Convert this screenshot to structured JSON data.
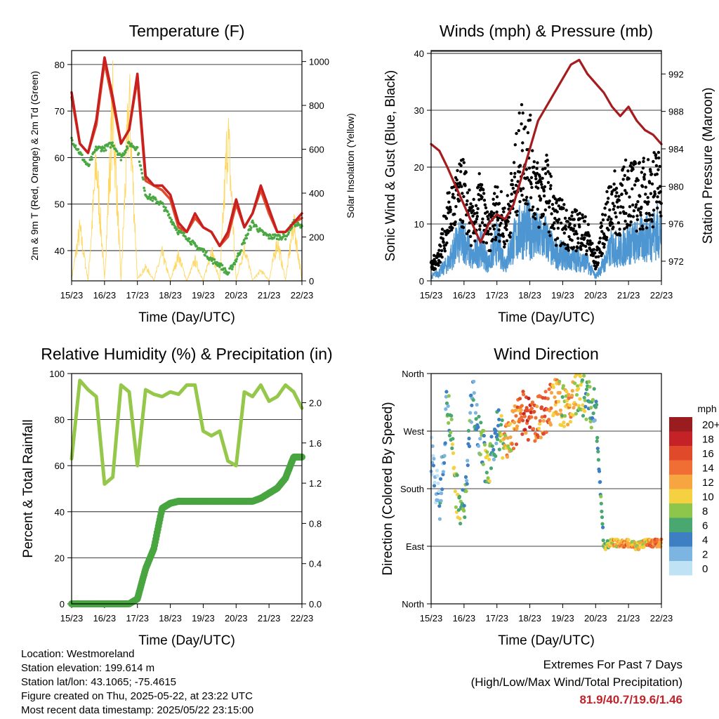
{
  "time_ticks": [
    "15/23",
    "16/23",
    "17/23",
    "18/23",
    "19/23",
    "20/23",
    "21/23",
    "22/23"
  ],
  "colors": {
    "t2m": "#e04a2a",
    "t9m": "#c8201f",
    "td": "#4aa843",
    "solar": "#ffd760",
    "gust": "#000000",
    "wind": "#4d96d2",
    "pressure": "#a51c1f",
    "rh": "#95c84a",
    "precip": "#48a540",
    "extremes": "#c0222a"
  },
  "chart_data": [
    {
      "id": "temperature",
      "type": "line",
      "title": "Temperature (F)",
      "xlabel": "Time (Day/UTC)",
      "ylabel": "2m & 9m T (Red, Orange) & 2m Td (Green)",
      "ylabel_right": "Solar Insolation (Yellow)",
      "ylim": [
        33.5,
        83
      ],
      "ylim_right": [
        0,
        1050
      ],
      "yticks": [
        40,
        50,
        60,
        70,
        80
      ],
      "yticks_right": [
        0,
        200,
        400,
        600,
        800,
        1000
      ],
      "x": [
        0,
        0.25,
        0.5,
        0.75,
        1,
        1.25,
        1.5,
        1.75,
        2,
        2.25,
        2.5,
        2.75,
        3,
        3.25,
        3.5,
        3.75,
        4,
        4.25,
        4.5,
        4.75,
        5,
        5.25,
        5.5,
        5.75,
        6,
        6.25,
        6.5,
        6.75,
        7
      ],
      "series": [
        {
          "name": "9m T",
          "values": [
            74,
            63,
            61,
            68,
            81.5,
            73,
            63,
            66,
            78,
            56,
            54,
            54,
            52,
            46,
            44,
            48,
            45,
            44,
            41,
            44,
            51,
            45,
            48,
            54,
            49,
            44,
            44,
            46,
            48
          ]
        },
        {
          "name": "2m T",
          "values": [
            73,
            63,
            61,
            67,
            80.5,
            72,
            63,
            66,
            77,
            55,
            54,
            53,
            51,
            45,
            44,
            47,
            45,
            44,
            41,
            43,
            50,
            45,
            48,
            53,
            48,
            44,
            44,
            46,
            47
          ]
        },
        {
          "name": "2m Td",
          "values": [
            64,
            61,
            58,
            62,
            62,
            63,
            60,
            63,
            62,
            52,
            51,
            50,
            47,
            44,
            43,
            41,
            40,
            38,
            37,
            35,
            38,
            42,
            46,
            44,
            43,
            43,
            43,
            46,
            45
          ]
        },
        {
          "name": "Solar",
          "values": [
            10,
            300,
            5,
            690,
            10,
            1020,
            5,
            1050,
            10,
            80,
            5,
            160,
            5,
            150,
            0,
            120,
            0,
            180,
            0,
            880,
            5,
            200,
            5,
            60,
            5,
            230,
            5,
            340,
            0
          ]
        }
      ]
    },
    {
      "id": "winds",
      "type": "line",
      "title": "Winds (mph) & Pressure (mb)",
      "xlabel": "Time (Day/UTC)",
      "ylabel": "Sonic Wind & Gust (Blue, Black)",
      "ylabel_right": "Station Pressure (Maroon)",
      "ylim": [
        0,
        40.5
      ],
      "ylim_right": [
        969.9,
        994.5
      ],
      "yticks": [
        0,
        10,
        20,
        30,
        40
      ],
      "yticks_right": [
        972,
        976,
        980,
        984,
        988,
        992
      ],
      "x": [
        0,
        0.25,
        0.5,
        0.75,
        1,
        1.25,
        1.5,
        1.75,
        2,
        2.25,
        2.5,
        2.75,
        3,
        3.25,
        3.5,
        3.75,
        4,
        4.25,
        4.5,
        4.75,
        5,
        5.25,
        5.5,
        5.75,
        6,
        6.25,
        6.5,
        6.75,
        7
      ],
      "series": [
        {
          "name": "Gust",
          "values": [
            3,
            6,
            14,
            18,
            20,
            12,
            18,
            10,
            17,
            12,
            20,
            30,
            27,
            19,
            21,
            14,
            13,
            11,
            12,
            10,
            4,
            12,
            18,
            17,
            21,
            19,
            20,
            21,
            22
          ]
        },
        {
          "name": "Wind",
          "values": [
            1,
            2,
            4,
            8,
            10,
            5,
            8,
            4,
            9,
            4,
            9,
            12,
            12,
            10,
            10,
            6,
            6,
            5,
            5,
            4,
            1,
            4,
            8,
            7,
            9,
            9,
            10,
            11,
            12
          ]
        },
        {
          "name": "Pressure",
          "values": [
            984.5,
            983.8,
            982,
            980,
            978,
            976,
            974,
            976,
            977,
            976.5,
            978,
            981,
            984,
            987,
            988.5,
            990,
            991.5,
            993,
            993.5,
            992,
            991,
            990,
            988.5,
            987.5,
            988.5,
            987,
            986,
            985.5,
            984.5
          ]
        }
      ]
    },
    {
      "id": "humidity_precip",
      "type": "line",
      "title": "Relative Humidity (%) & Precipitation (in)",
      "xlabel": "Time (Day/UTC)",
      "ylabel": "Percent & Total Rainfall",
      "ylim": [
        0,
        100
      ],
      "ylim_right": [
        0,
        2.29
      ],
      "yticks": [
        0,
        20,
        40,
        60,
        80,
        100
      ],
      "yticks_right": [
        0.0,
        0.4,
        0.8,
        1.2,
        1.6,
        2.0
      ],
      "x": [
        0,
        0.25,
        0.5,
        0.75,
        1,
        1.25,
        1.5,
        1.75,
        2,
        2.25,
        2.5,
        2.75,
        3,
        3.25,
        3.5,
        3.75,
        4,
        4.25,
        4.5,
        4.75,
        5,
        5.25,
        5.5,
        5.75,
        6,
        6.25,
        6.5,
        6.75,
        7
      ],
      "series": [
        {
          "name": "RH",
          "values": [
            63,
            97,
            93,
            90,
            52,
            55,
            95,
            92,
            60,
            93,
            91,
            90,
            92,
            91,
            95,
            95,
            75,
            73,
            75,
            62,
            60,
            92,
            90,
            95,
            88,
            90,
            95,
            92,
            85
          ]
        },
        {
          "name": "Precip",
          "values": [
            0,
            0,
            0,
            0,
            0,
            0,
            0,
            0,
            0.05,
            0.35,
            0.55,
            0.95,
            1.0,
            1.02,
            1.02,
            1.02,
            1.02,
            1.02,
            1.02,
            1.02,
            1.02,
            1.02,
            1.02,
            1.05,
            1.1,
            1.15,
            1.25,
            1.46,
            1.46
          ]
        }
      ]
    },
    {
      "id": "wind_direction",
      "type": "scatter",
      "title": "Wind Direction",
      "xlabel": "Time (Day/UTC)",
      "ylabel": "Direction (Colored By Speed)",
      "ylim": [
        0,
        360
      ],
      "yticks": [
        "North",
        "East",
        "South",
        "West",
        "North"
      ],
      "legend_title": "mph",
      "legend_labels": [
        "20+",
        "18",
        "16",
        "14",
        "12",
        "10",
        "8",
        "6",
        "4",
        "2",
        "0"
      ],
      "legend_colors": [
        "#9b1c1f",
        "#c42226",
        "#e04a2a",
        "#f06e34",
        "#f7a541",
        "#f5d040",
        "#8dc64a",
        "#48a870",
        "#3d7fc2",
        "#7db5e2",
        "#bfe3f5"
      ],
      "x": [
        0,
        0.25,
        0.5,
        0.75,
        1,
        1.25,
        1.5,
        1.75,
        2,
        2.25,
        2.5,
        2.75,
        3,
        3.25,
        3.5,
        3.75,
        4,
        4.25,
        4.5,
        4.75,
        5,
        5.25,
        5.5,
        5.75,
        6,
        6.25,
        6.5,
        6.75,
        7
      ],
      "series": [
        {
          "name": "Direction",
          "values": [
            240,
            150,
            330,
            180,
            140,
            330,
            260,
            200,
            280,
            250,
            270,
            300,
            285,
            290,
            300,
            320,
            310,
            310,
            335,
            320,
            300,
            90,
            95,
            95,
            95,
            90,
            95,
            95,
            95
          ],
          "speeds": [
            1,
            2,
            5,
            9,
            6,
            4,
            5,
            8,
            3,
            11,
            12,
            14,
            17,
            13,
            15,
            12,
            9,
            13,
            8,
            7,
            4,
            7,
            10,
            12,
            13,
            10,
            11,
            14,
            12
          ]
        }
      ]
    }
  ],
  "info": {
    "location": "Location: Westmoreland",
    "elevation": "Station elevation: 199.614 m",
    "latlon": "Station lat/lon: 43.1065; -75.4615",
    "created": "Figure created on Thu, 2025-05-22, at 23:22 UTC",
    "recent": "Most recent data timestamp: 2025/05/22 23:15:00"
  },
  "extremes": {
    "heading": "Extremes For Past 7 Days",
    "subheading": "(High/Low/Max Wind/Total Precipitation)",
    "values": "81.9/40.7/19.6/1.46"
  }
}
